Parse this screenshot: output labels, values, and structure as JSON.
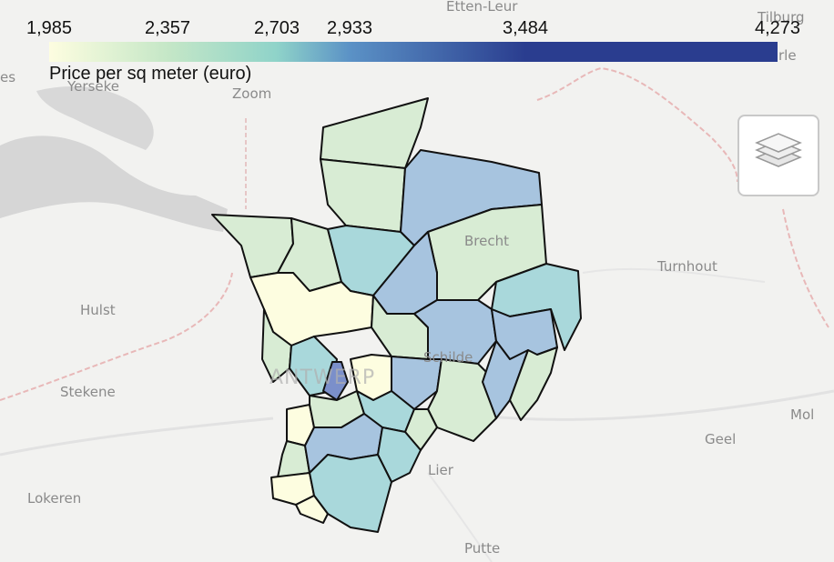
{
  "legend": {
    "title": "Price per sq meter (euro)",
    "ticks": [
      "1,985",
      "2,357",
      "2,703",
      "2,933",
      "3,484",
      "4,273"
    ],
    "colors": [
      "#fdfde0",
      "#c5e7c7",
      "#8fd3c9",
      "#5b92c6",
      "#2a3d8f"
    ]
  },
  "basemap_labels": {
    "etten_leur": "Etten-Leur",
    "tilburg": "Tilburg",
    "rle": "rle",
    "yerseke": "Yerseke",
    "zoom": "Zoom",
    "es": "es",
    "brecht": "Brecht",
    "turnhout": "Turnhout",
    "hulst": "Hulst",
    "schilde": "Schilde",
    "antwerp": "ANTWERP",
    "stekene": "Stekene",
    "mol": "Mol",
    "geel": "Geel",
    "lier": "Lier",
    "lokeren": "Lokeren",
    "putte": "Putte"
  },
  "controls": {
    "layers_icon": "layers-icon"
  },
  "chart_data": {
    "type": "choropleth",
    "colorbar_title": "Price per sq meter (euro)",
    "colorbar_range": [
      1985,
      4273
    ],
    "colorbar_ticks": [
      1985,
      2357,
      2703,
      2933,
      3484,
      4273
    ]
  }
}
